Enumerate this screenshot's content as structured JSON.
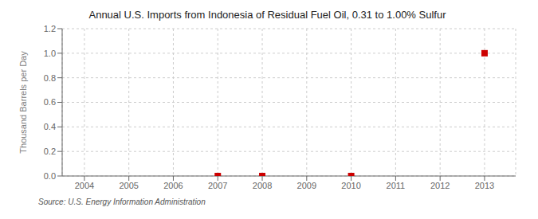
{
  "chart_data": {
    "type": "scatter",
    "title": "Annual U.S. Imports from Indonesia of Residual Fuel Oil, 0.31 to 1.00% Sulfur",
    "y_label": "Thousand Barrels per Day",
    "annotations": [
      "Source: U.S. Energy Information Administration"
    ],
    "x": [
      2007,
      2008,
      2010,
      2013
    ],
    "values": [
      0.0,
      0.0,
      0.0,
      1.0
    ],
    "color": "#cc0000",
    "marker": "square",
    "xlim": [
      2003.5,
      2013.7
    ],
    "xticks": [
      2004,
      2005,
      2006,
      2007,
      2008,
      2009,
      2010,
      2011,
      2012,
      2013
    ],
    "ylim": [
      0,
      1.2
    ],
    "yticks": [
      {
        "value": 0,
        "label": "0.0"
      },
      0.2,
      0.4,
      0.6,
      0.8,
      {
        "value": 1,
        "label": "1.0"
      },
      1.2
    ],
    "grid": true
  }
}
